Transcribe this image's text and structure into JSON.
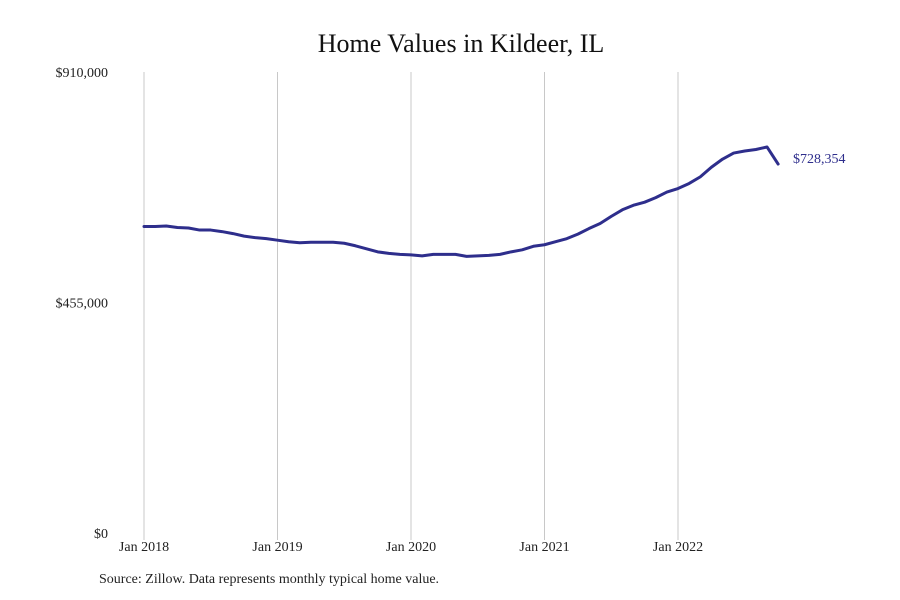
{
  "chart_data": {
    "type": "line",
    "title": "Home Values in Kildeer, IL",
    "xlabel": "",
    "ylabel": "",
    "ylim": [
      0,
      910000
    ],
    "y_ticks": [
      {
        "value": 0,
        "label": "$0"
      },
      {
        "value": 455000,
        "label": "$455,000"
      },
      {
        "value": 910000,
        "label": "$910,000"
      }
    ],
    "x_ticks": [
      {
        "value": "2018-01",
        "label": "Jan 2018"
      },
      {
        "value": "2019-01",
        "label": "Jan 2019"
      },
      {
        "value": "2020-01",
        "label": "Jan 2020"
      },
      {
        "value": "2021-01",
        "label": "Jan 2021"
      },
      {
        "value": "2022-01",
        "label": "Jan 2022"
      }
    ],
    "grid": "vertical",
    "line_color": "#2e2e8c",
    "grid_color": "#c8c8c8",
    "end_label": "$728,354",
    "series": [
      {
        "x": [
          "2018-01",
          "2018-02",
          "2018-03",
          "2018-04",
          "2018-05",
          "2018-06",
          "2018-07",
          "2018-08",
          "2018-09",
          "2018-10",
          "2018-11",
          "2018-12",
          "2019-01",
          "2019-02",
          "2019-03",
          "2019-04",
          "2019-05",
          "2019-06",
          "2019-07",
          "2019-08",
          "2019-09",
          "2019-10",
          "2019-11",
          "2019-12",
          "2020-01",
          "2020-02",
          "2020-03",
          "2020-04",
          "2020-05",
          "2020-06",
          "2020-07",
          "2020-08",
          "2020-09",
          "2020-10",
          "2020-11",
          "2020-12",
          "2021-01",
          "2021-02",
          "2021-03",
          "2021-04",
          "2021-05",
          "2021-06",
          "2021-07",
          "2021-08",
          "2021-09",
          "2021-10",
          "2021-11",
          "2021-12",
          "2022-01",
          "2022-02",
          "2022-03",
          "2022-04",
          "2022-05",
          "2022-06",
          "2022-07",
          "2022-08",
          "2022-09",
          "2022-10"
        ],
        "values": [
          605000,
          605000,
          606000,
          603000,
          602000,
          598000,
          598000,
          595000,
          591000,
          586000,
          583000,
          581000,
          578000,
          575000,
          573000,
          574000,
          574000,
          574000,
          572000,
          567000,
          561000,
          555000,
          552000,
          550000,
          549000,
          547000,
          550000,
          550000,
          550000,
          546000,
          547000,
          548000,
          550000,
          555000,
          559000,
          566000,
          569000,
          575000,
          581000,
          590000,
          601000,
          611000,
          625000,
          638000,
          647000,
          653000,
          662000,
          673000,
          680000,
          690000,
          703000,
          722000,
          738000,
          750000,
          754000,
          757000,
          762000,
          728354
        ]
      }
    ]
  },
  "source_note": "Source: Zillow. Data represents monthly typical home value."
}
